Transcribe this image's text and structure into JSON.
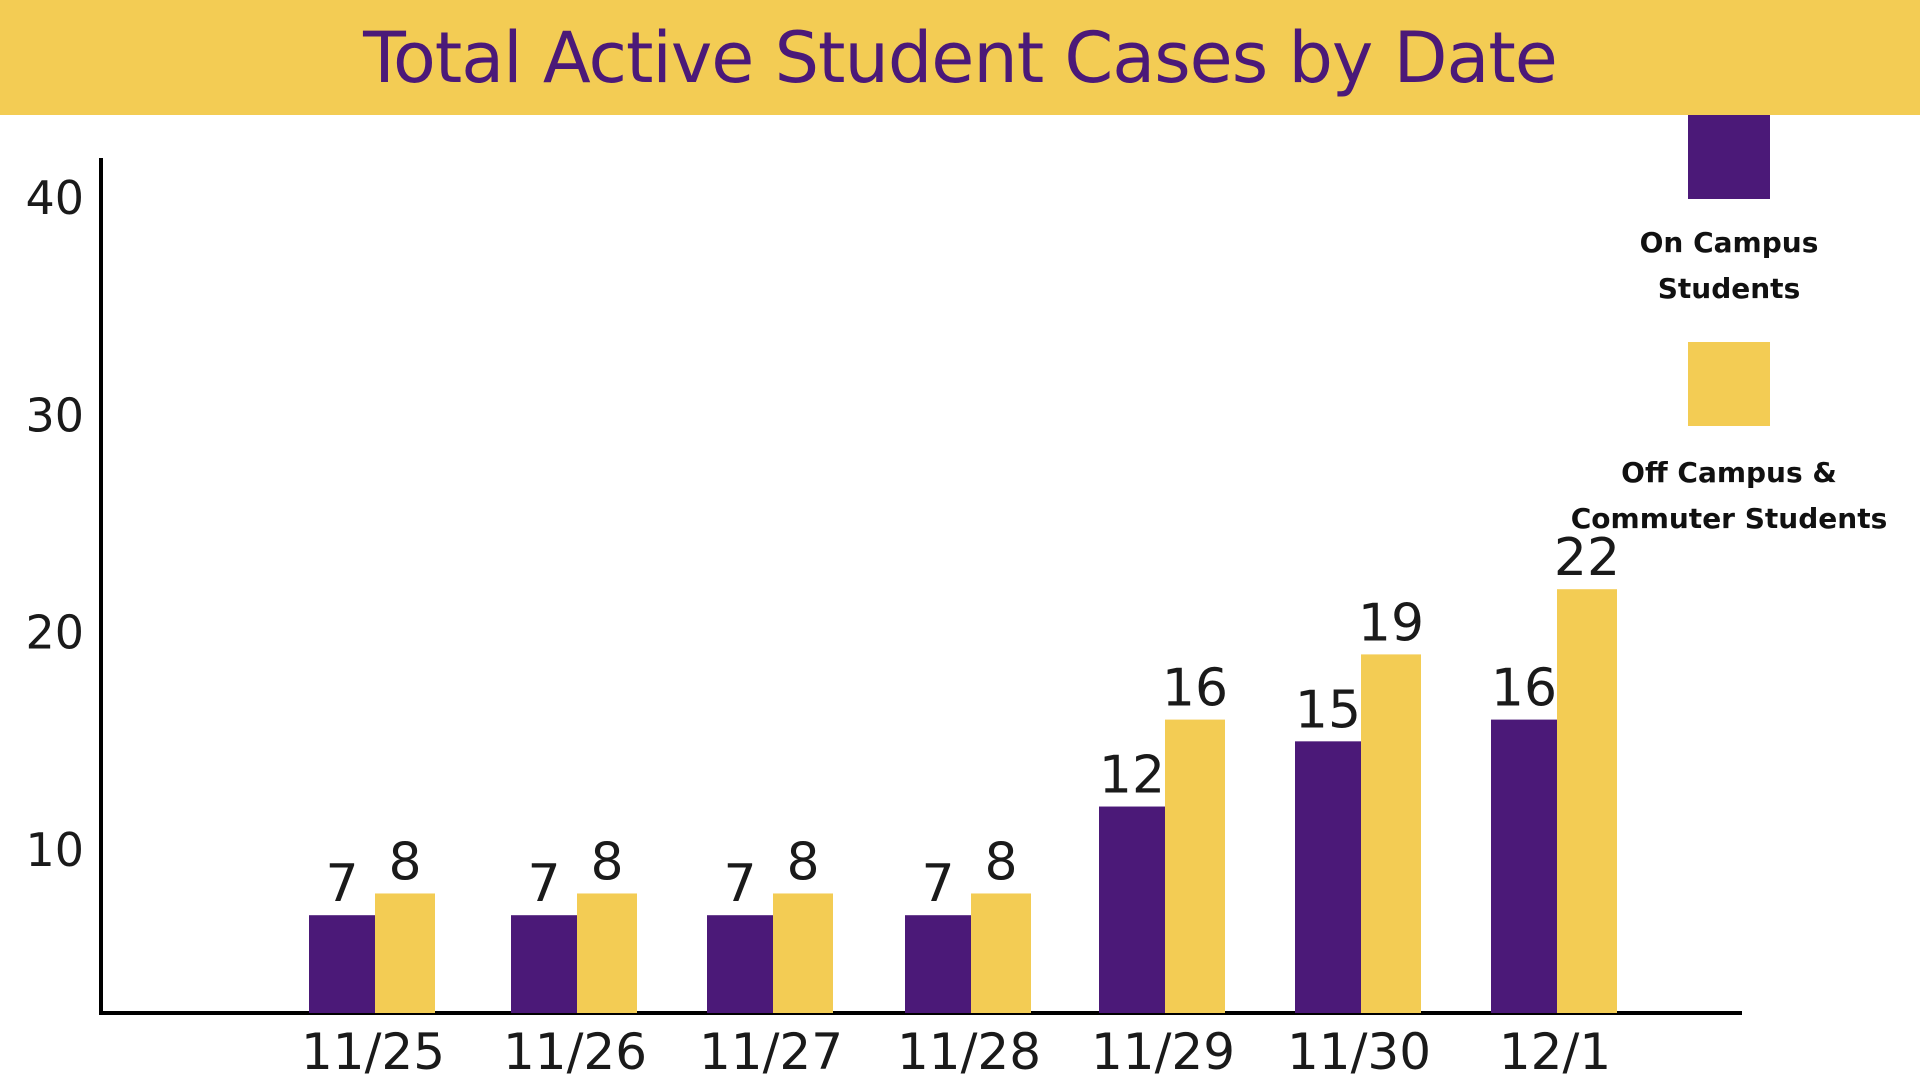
{
  "chart_data": {
    "type": "bar",
    "title": "Total Active Student Cases by Date",
    "categories": [
      "11/25",
      "11/26",
      "11/27",
      "11/28",
      "11/29",
      "11/30",
      "12/1"
    ],
    "series": [
      {
        "name": "On Campus Students",
        "values": [
          7,
          7,
          7,
          7,
          12,
          15,
          16
        ],
        "color": "#4b1978"
      },
      {
        "name": "Off Campus & Commuter Students",
        "values": [
          8,
          8,
          8,
          8,
          16,
          19,
          22
        ],
        "color": "#f3cc54"
      }
    ],
    "legend": {
      "position": "top-right",
      "entries": [
        {
          "lines": [
            "On Campus",
            "Students"
          ]
        },
        {
          "lines": [
            "Off Campus &",
            "Commuter Students"
          ]
        }
      ]
    },
    "yticks": [
      10,
      20,
      30,
      40
    ],
    "xlabel": "",
    "ylabel": "",
    "grid": false
  },
  "colors": {
    "title_band": "#f3cc54",
    "title_text": "#4b1978",
    "axis": "#000000"
  }
}
